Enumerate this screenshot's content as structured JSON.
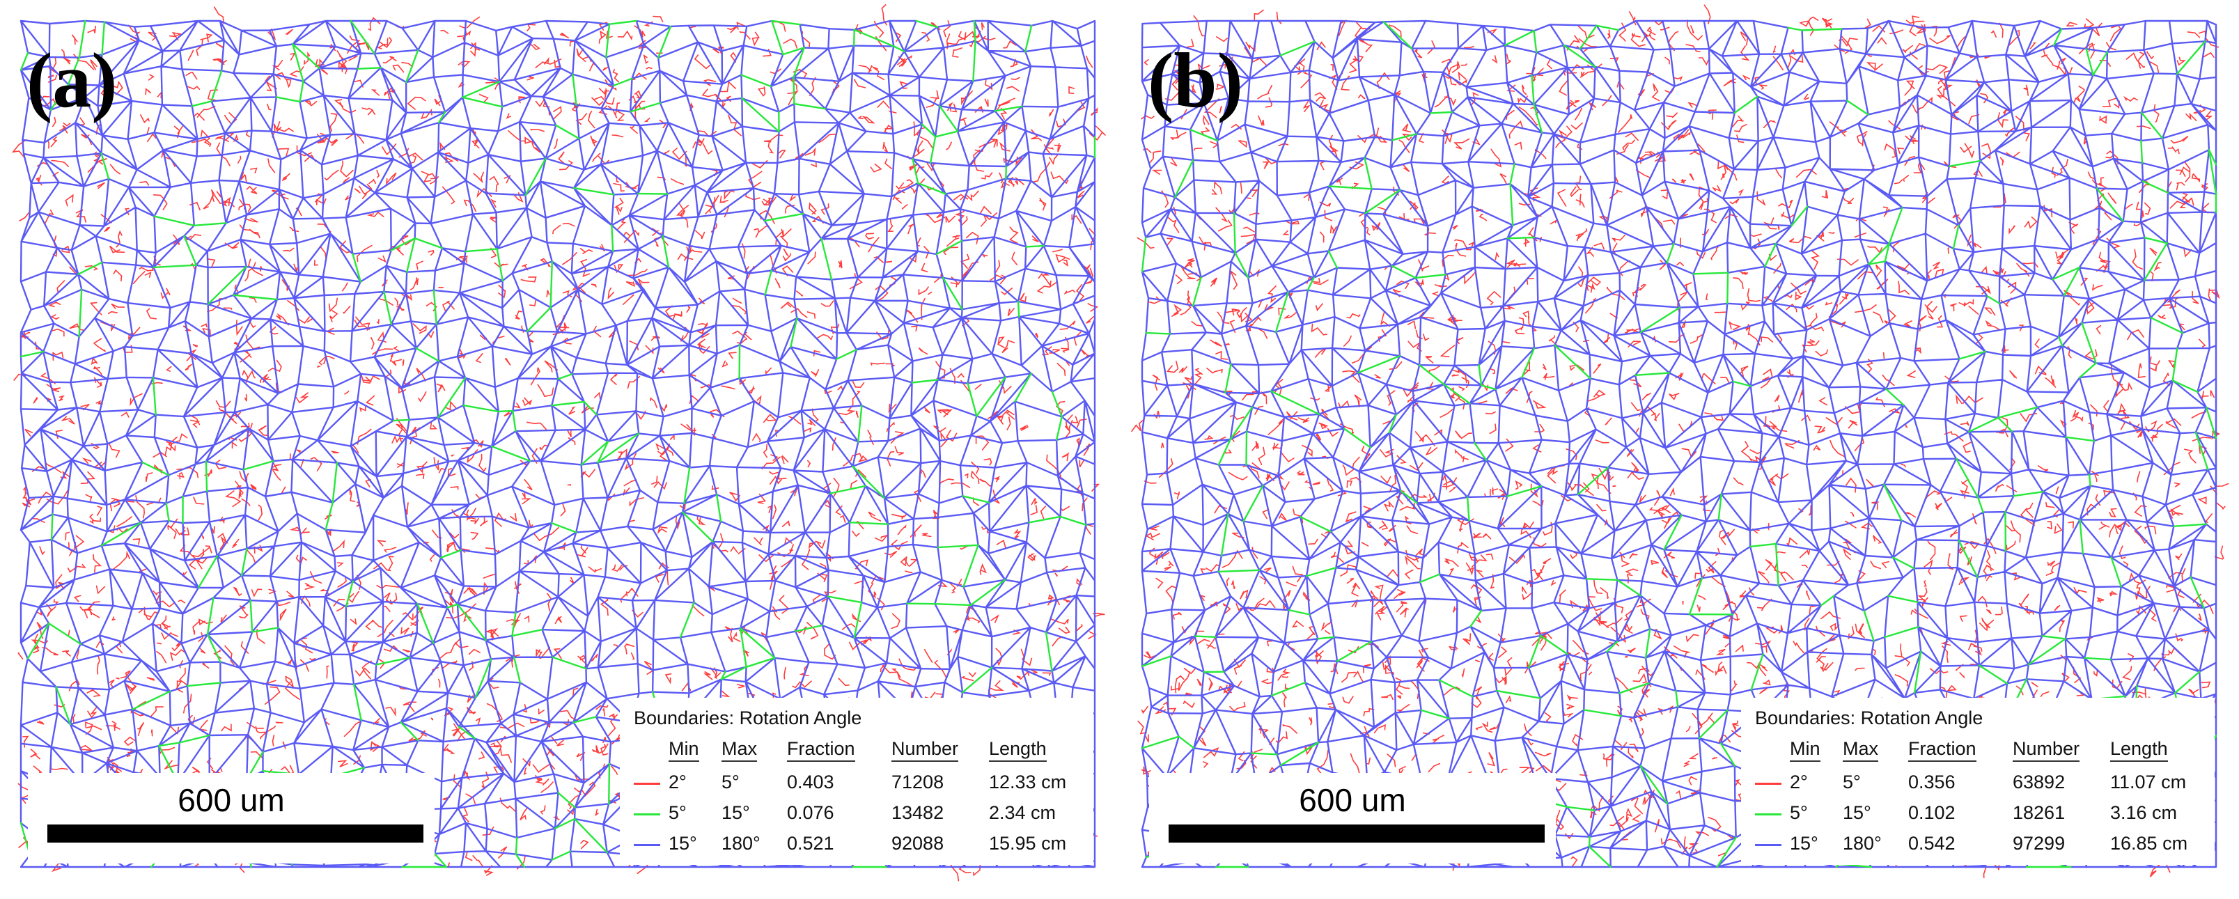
{
  "figure": {
    "panels": [
      {
        "label": "(a)",
        "scale_bar": {
          "text": "600 um"
        },
        "legend": {
          "title": "Boundaries: Rotation Angle",
          "headers": [
            "Min",
            "Max",
            "Fraction",
            "Number",
            "Length"
          ],
          "rows": [
            {
              "color": "#ff3b3b",
              "min": "2°",
              "max": "5°",
              "fraction": "0.403",
              "number": "71208",
              "length": "12.33 cm"
            },
            {
              "color": "#27e83a",
              "min": "5°",
              "max": "15°",
              "fraction": "0.076",
              "number": "13482",
              "length": "2.34 cm"
            },
            {
              "color": "#5a5af5",
              "min": "15°",
              "max": "180°",
              "fraction": "0.521",
              "number": "92088",
              "length": "15.95 cm"
            }
          ]
        }
      },
      {
        "label": "(b)",
        "scale_bar": {
          "text": "600 um"
        },
        "legend": {
          "title": "Boundaries: Rotation Angle",
          "headers": [
            "Min",
            "Max",
            "Fraction",
            "Number",
            "Length"
          ],
          "rows": [
            {
              "color": "#ff3b3b",
              "min": "2°",
              "max": "5°",
              "fraction": "0.356",
              "number": "63892",
              "length": "11.07 cm"
            },
            {
              "color": "#27e83a",
              "min": "5°",
              "max": "15°",
              "fraction": "0.102",
              "number": "18261",
              "length": "3.16 cm"
            },
            {
              "color": "#5a5af5",
              "min": "15°",
              "max": "180°",
              "fraction": "0.542",
              "number": "97299",
              "length": "16.85 cm"
            }
          ]
        }
      }
    ]
  }
}
